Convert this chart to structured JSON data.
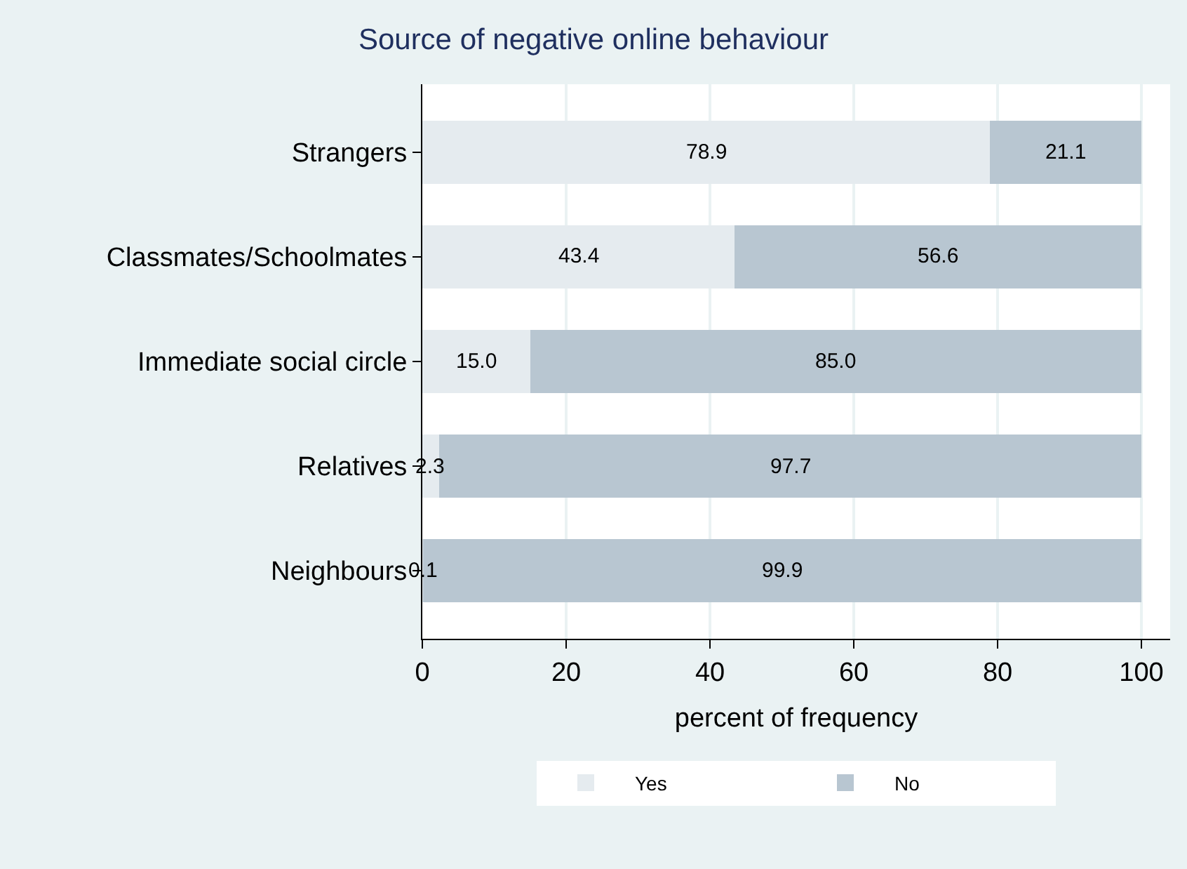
{
  "chart_data": {
    "type": "bar",
    "orientation": "horizontal",
    "stacked": true,
    "title": "Source of negative online behaviour",
    "xlabel": "percent of frequency",
    "categories": [
      "Strangers",
      "Classmates/Schoolmates",
      "Immediate social circle",
      "Relatives",
      "Neighbours"
    ],
    "series": [
      {
        "name": "Yes",
        "color": "#e5ebef",
        "values": [
          78.9,
          43.4,
          15.0,
          2.3,
          0.1
        ],
        "value_labels": [
          "78.9",
          "43.4",
          "15.0",
          "2.3",
          "0.1"
        ]
      },
      {
        "name": "No",
        "color": "#b8c6d1",
        "values": [
          21.1,
          56.6,
          85.0,
          97.7,
          99.9
        ],
        "value_labels": [
          "21.1",
          "56.6",
          "85.0",
          "97.7",
          "99.9"
        ]
      }
    ],
    "xlim": [
      0,
      104
    ],
    "xticks": [
      0,
      20,
      40,
      60,
      80,
      100
    ],
    "grid": "x",
    "legend": "bottom"
  }
}
